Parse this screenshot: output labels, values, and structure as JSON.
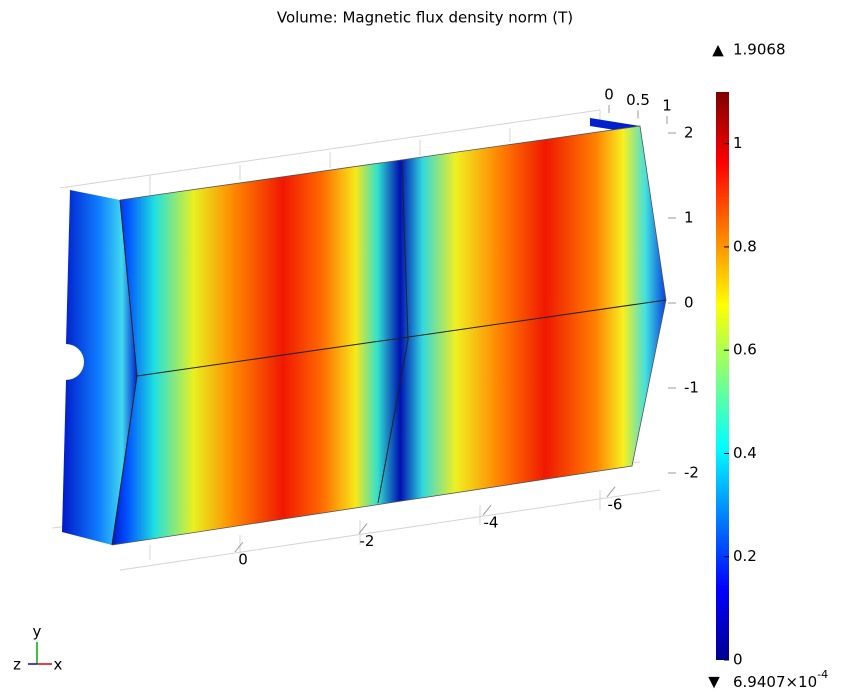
{
  "title": "Volume: Magnetic flux density norm (T)",
  "colorbar": {
    "max_label": "1.9068",
    "min_label": {
      "mantissa": "6.9407×10",
      "exponent": "-4"
    },
    "range": [
      0,
      1.1
    ],
    "ticks": [
      0,
      0.2,
      0.4,
      0.6,
      0.8,
      1
    ]
  },
  "axes": {
    "x_ticks": [
      0,
      -2,
      -4,
      -6
    ],
    "y_ticks": [
      2,
      1,
      0,
      -1,
      -2
    ],
    "z_ticks": [
      0,
      0.5,
      1
    ]
  },
  "triad": {
    "x": "x",
    "y": "y",
    "z": "z"
  }
}
